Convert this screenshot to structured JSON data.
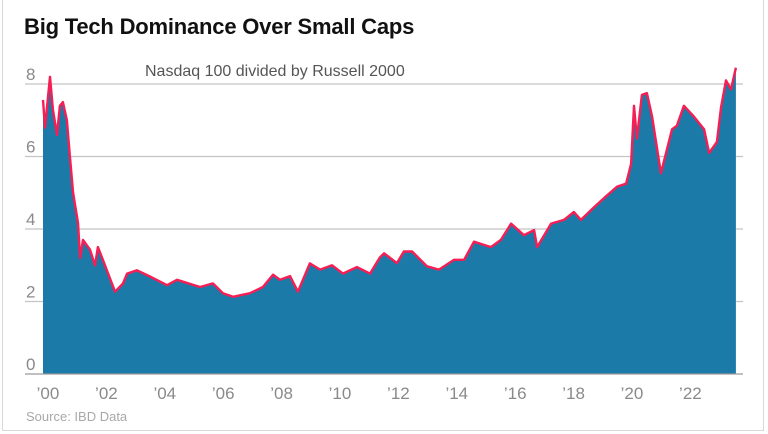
{
  "chart_data": {
    "type": "area",
    "title": "Big Tech Dominance Over Small Caps",
    "subtitle": "Nasdaq 100 divided by Russell 2000",
    "source": "Source: IBD Data",
    "xlabel": "",
    "ylabel": "",
    "ylim": [
      0,
      8.6
    ],
    "xlim": [
      2000,
      2023.8
    ],
    "grid": true,
    "yticks": [
      0,
      2,
      4,
      6,
      8
    ],
    "xticks": [
      2000,
      2002,
      2004,
      2006,
      2008,
      2010,
      2012,
      2014,
      2016,
      2018,
      2020,
      2022
    ],
    "xtick_labels": [
      "’00",
      "’02",
      "’04",
      "’06",
      "’08",
      "’10",
      "’12",
      "’14",
      "’16",
      "’18",
      "’20",
      "’22"
    ],
    "colors": {
      "fill": "#1b7aa7",
      "line": "#f51f56",
      "grid": "#c4c4c4",
      "baseline": "#9a9a9a"
    },
    "x": [
      2000.0,
      2000.07,
      2000.24,
      2000.34,
      2000.48,
      2000.58,
      2000.68,
      2000.82,
      2000.92,
      2001.03,
      2001.2,
      2001.27,
      2001.37,
      2001.61,
      2001.78,
      2001.88,
      2002.05,
      2002.36,
      2002.47,
      2002.74,
      2002.88,
      2003.22,
      2003.66,
      2004.25,
      2004.59,
      2005.38,
      2005.82,
      2006.16,
      2006.51,
      2007.09,
      2007.53,
      2007.88,
      2008.12,
      2008.46,
      2008.73,
      2008.9,
      2009.14,
      2009.49,
      2009.9,
      2010.27,
      2010.75,
      2011.2,
      2011.54,
      2011.68,
      2012.12,
      2012.36,
      2012.64,
      2013.15,
      2013.56,
      2014.08,
      2014.42,
      2014.76,
      2015.34,
      2015.68,
      2016.03,
      2016.47,
      2016.82,
      2016.92,
      2017.4,
      2017.84,
      2018.18,
      2018.42,
      2018.87,
      2019.21,
      2019.66,
      2019.97,
      2020.14,
      2020.24,
      2020.34,
      2020.51,
      2020.68,
      2020.86,
      2021.16,
      2021.37,
      2021.54,
      2021.71,
      2021.95,
      2022.29,
      2022.64,
      2022.81,
      2023.08,
      2023.22,
      2023.39,
      2023.56,
      2023.73
    ],
    "values": [
      7.56,
      6.8,
      8.2,
      7.3,
      6.6,
      7.4,
      7.5,
      7.0,
      6.0,
      5.0,
      4.17,
      3.2,
      3.7,
      3.43,
      3.0,
      3.5,
      3.15,
      2.5,
      2.27,
      2.5,
      2.77,
      2.86,
      2.69,
      2.45,
      2.6,
      2.4,
      2.5,
      2.23,
      2.13,
      2.23,
      2.4,
      2.74,
      2.6,
      2.7,
      2.27,
      2.6,
      3.05,
      2.88,
      3.0,
      2.77,
      2.95,
      2.77,
      3.22,
      3.33,
      3.06,
      3.38,
      3.38,
      2.97,
      2.88,
      3.15,
      3.15,
      3.65,
      3.5,
      3.7,
      4.15,
      3.83,
      3.97,
      3.5,
      4.15,
      4.25,
      4.47,
      4.25,
      4.6,
      4.85,
      5.17,
      5.25,
      5.8,
      7.4,
      6.5,
      7.7,
      7.75,
      7.1,
      5.54,
      6.2,
      6.75,
      6.85,
      7.4,
      7.1,
      6.75,
      6.1,
      6.4,
      7.35,
      8.1,
      7.85,
      8.45
    ]
  }
}
